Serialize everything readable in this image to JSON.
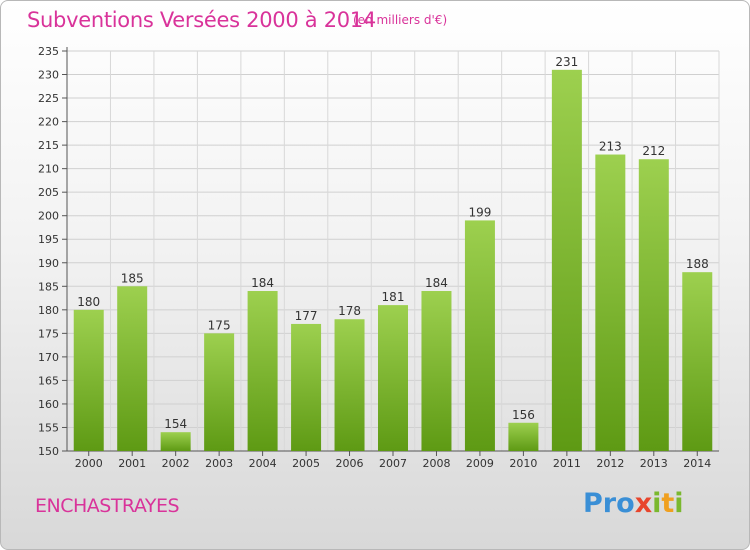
{
  "header": {
    "title": "Subventions Versées 2000 à 2014",
    "subtitle": "(en milliers d'€)"
  },
  "footer": {
    "commune": "ENCHASTRAYES",
    "logo_letters": [
      {
        "char": "P",
        "color": "#3a8fd6"
      },
      {
        "char": "r",
        "color": "#3a8fd6"
      },
      {
        "char": "o",
        "color": "#3a8fd6"
      },
      {
        "char": "x",
        "color": "#e8452c"
      },
      {
        "char": "i",
        "color": "#7ab82e"
      },
      {
        "char": "t",
        "color": "#f0a020"
      },
      {
        "char": "i",
        "color": "#7ab82e"
      }
    ]
  },
  "colors": {
    "bar_light": "#9dd04f",
    "bar_dark": "#5e9a14",
    "accent": "#d9339a"
  },
  "chart_data": {
    "type": "bar",
    "categories": [
      "2000",
      "2001",
      "2002",
      "2003",
      "2004",
      "2005",
      "2006",
      "2007",
      "2008",
      "2009",
      "2010",
      "2011",
      "2012",
      "2013",
      "2014"
    ],
    "values": [
      180,
      185,
      154,
      175,
      184,
      177,
      178,
      181,
      184,
      199,
      156,
      231,
      213,
      212,
      188
    ],
    "ylim": [
      150,
      235
    ],
    "yticks": [
      150,
      155,
      160,
      165,
      170,
      175,
      180,
      185,
      190,
      195,
      200,
      205,
      210,
      215,
      220,
      225,
      230,
      235
    ],
    "grid": true
  }
}
